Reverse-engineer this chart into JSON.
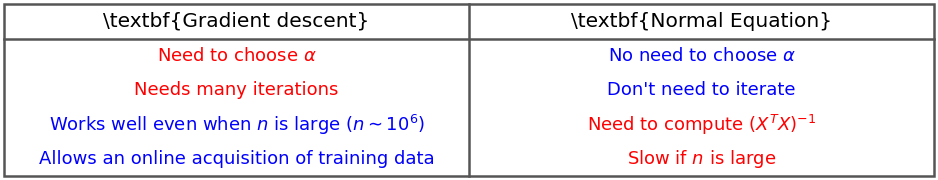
{
  "title_left": "Gradient descent",
  "title_right": "Normal Equation",
  "left_rows": [
    {
      "text": "Need to choose $\\alpha$",
      "color": "red"
    },
    {
      "text": "Needs many iterations",
      "color": "red"
    },
    {
      "text": "Works well even when $n$ is large $(n \\sim 10^6)$",
      "color": "blue"
    },
    {
      "text": "Allows an online acquisition of training data",
      "color": "blue"
    }
  ],
  "right_rows": [
    {
      "text": "No need to choose $\\alpha$",
      "color": "blue"
    },
    {
      "text": "Don't need to iterate",
      "color": "blue"
    },
    {
      "text": "Need to compute $(X^TX)^{-1}$",
      "color": "red"
    },
    {
      "text": "Slow if $n$ is large",
      "color": "red"
    }
  ],
  "header_color": "#000000",
  "background_color": "#ffffff",
  "border_color": "#555555",
  "font_size": 13.0,
  "header_font_size": 14.5
}
